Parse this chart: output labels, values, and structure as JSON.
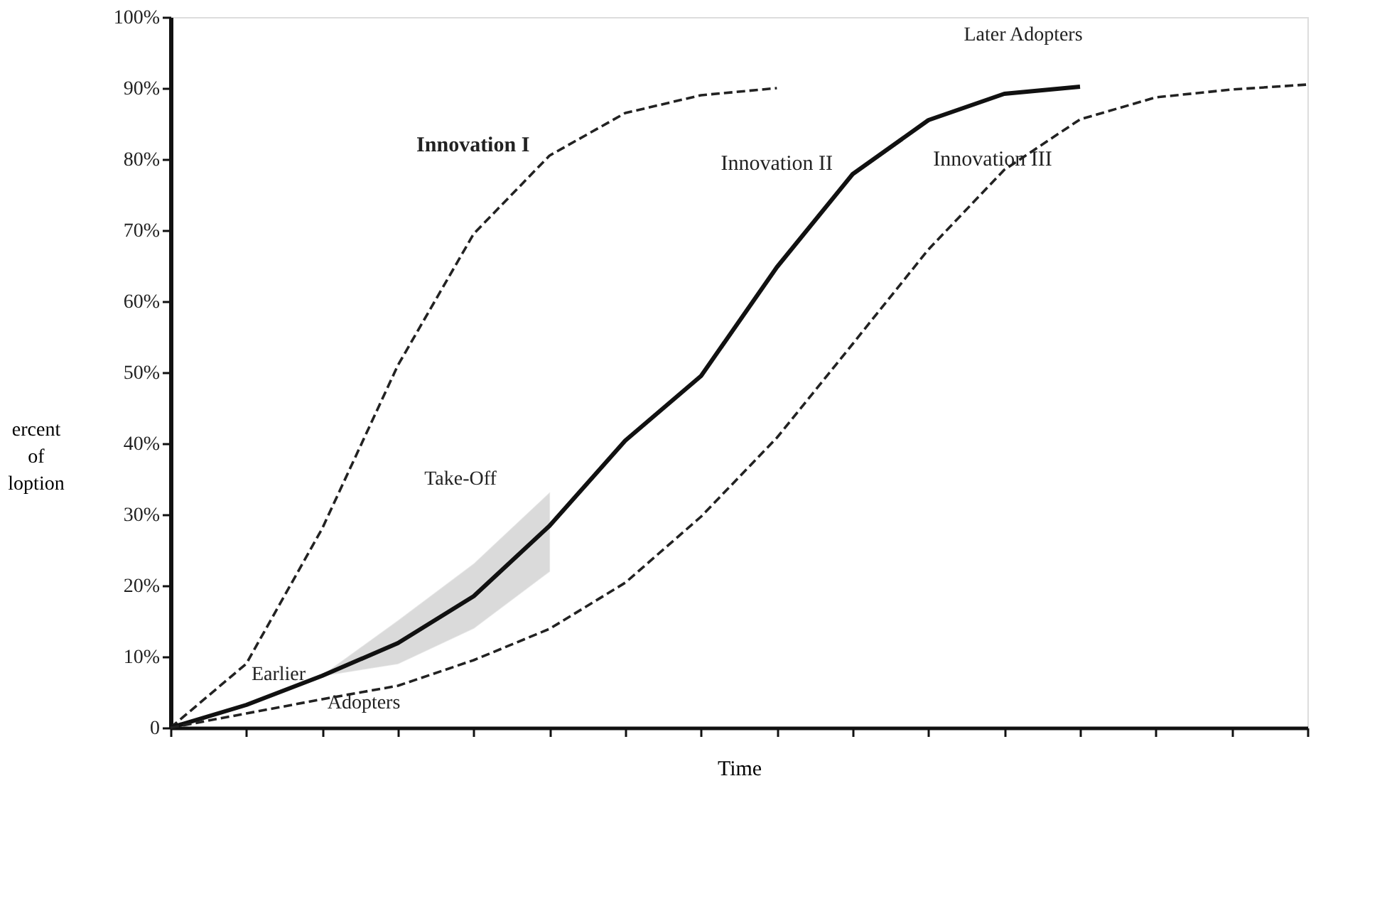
{
  "chart_data": {
    "type": "line",
    "categories": [
      null,
      null,
      null,
      null,
      null,
      null,
      null,
      null,
      null,
      null,
      null,
      null,
      null,
      null,
      null,
      null
    ],
    "series": [
      {
        "name": "Innovation I",
        "color": "#222222",
        "line_style": "dashed",
        "values": [
          0,
          9,
          28,
          51,
          69.5,
          80.5,
          86.5,
          89,
          90,
          null,
          null,
          null,
          null,
          null,
          null,
          null
        ]
      },
      {
        "name": "Innovation II",
        "color": "#111111",
        "line_style": "solid",
        "values": [
          0,
          3.2,
          7.3,
          11.9,
          18.5,
          28.4,
          40.4,
          49.5,
          64.8,
          77.9,
          85.5,
          89.2,
          90.2,
          null,
          null,
          null
        ],
        "lower": [
          null,
          null,
          7.3,
          9,
          14,
          22,
          null,
          null,
          null,
          null,
          null,
          null,
          null,
          null,
          null,
          null
        ],
        "upper": [
          null,
          null,
          7.3,
          15,
          23,
          33,
          null,
          null,
          null,
          null,
          null,
          null,
          null,
          null,
          null,
          null
        ]
      },
      {
        "name": "Innovation III",
        "color": "#222222",
        "line_style": "dashed",
        "values": [
          0,
          2,
          4,
          5.9,
          9.5,
          13.9,
          20.4,
          29.7,
          40.8,
          54,
          67.3,
          78.5,
          85.6,
          88.7,
          89.8,
          90.5
        ]
      }
    ],
    "xlabel": "Time",
    "ylabel": "ercent of loption",
    "ylim": [
      0,
      100
    ],
    "yticks": [
      {
        "value": 0,
        "label": "0"
      },
      {
        "value": 10,
        "label": "10%"
      },
      {
        "value": 20,
        "label": "20%"
      },
      {
        "value": 30,
        "label": "30%"
      },
      {
        "value": 40,
        "label": "40%"
      },
      {
        "value": 50,
        "label": "50%"
      },
      {
        "value": 60,
        "label": "60%"
      },
      {
        "value": 70,
        "label": "70%"
      },
      {
        "value": 80,
        "label": "80%"
      },
      {
        "value": 90,
        "label": "90%"
      },
      {
        "value": 100,
        "label": "100%"
      }
    ],
    "tick_labels": "y",
    "grid": false,
    "marker": "none",
    "annotations": [
      "Take-Off",
      "Earlier",
      "Adopters",
      "Later Adopters"
    ]
  }
}
